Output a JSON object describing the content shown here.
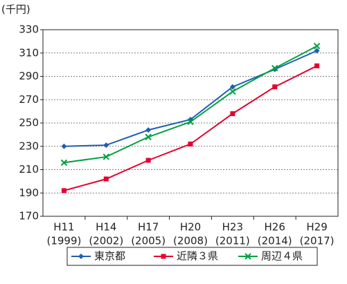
{
  "chart_data": {
    "type": "line",
    "y_label": "(千円)",
    "categories": [
      [
        "H11",
        "(1999)"
      ],
      [
        "H14",
        "(2002)"
      ],
      [
        "H17",
        "(2005)"
      ],
      [
        "H20",
        "(2008)"
      ],
      [
        "H23",
        "(2011)"
      ],
      [
        "H26",
        "(2014)"
      ],
      [
        "H29",
        "(2017)"
      ]
    ],
    "series": [
      {
        "name": "東京都",
        "color": "#1f5fb0",
        "marker": "diamond",
        "values": [
          230,
          231,
          244,
          253,
          281,
          296,
          312
        ]
      },
      {
        "name": "近隣３県",
        "color": "#e5002d",
        "marker": "square",
        "values": [
          192,
          202,
          218,
          232,
          258,
          281,
          299
        ]
      },
      {
        "name": "周辺４県",
        "color": "#00a040",
        "marker": "cross",
        "values": [
          216,
          221,
          238,
          251,
          277,
          297,
          316
        ]
      }
    ],
    "ylim": [
      170,
      330
    ],
    "yticks": [
      170,
      190,
      210,
      230,
      250,
      270,
      290,
      310,
      330
    ],
    "grid": true,
    "legend": "bottom"
  }
}
